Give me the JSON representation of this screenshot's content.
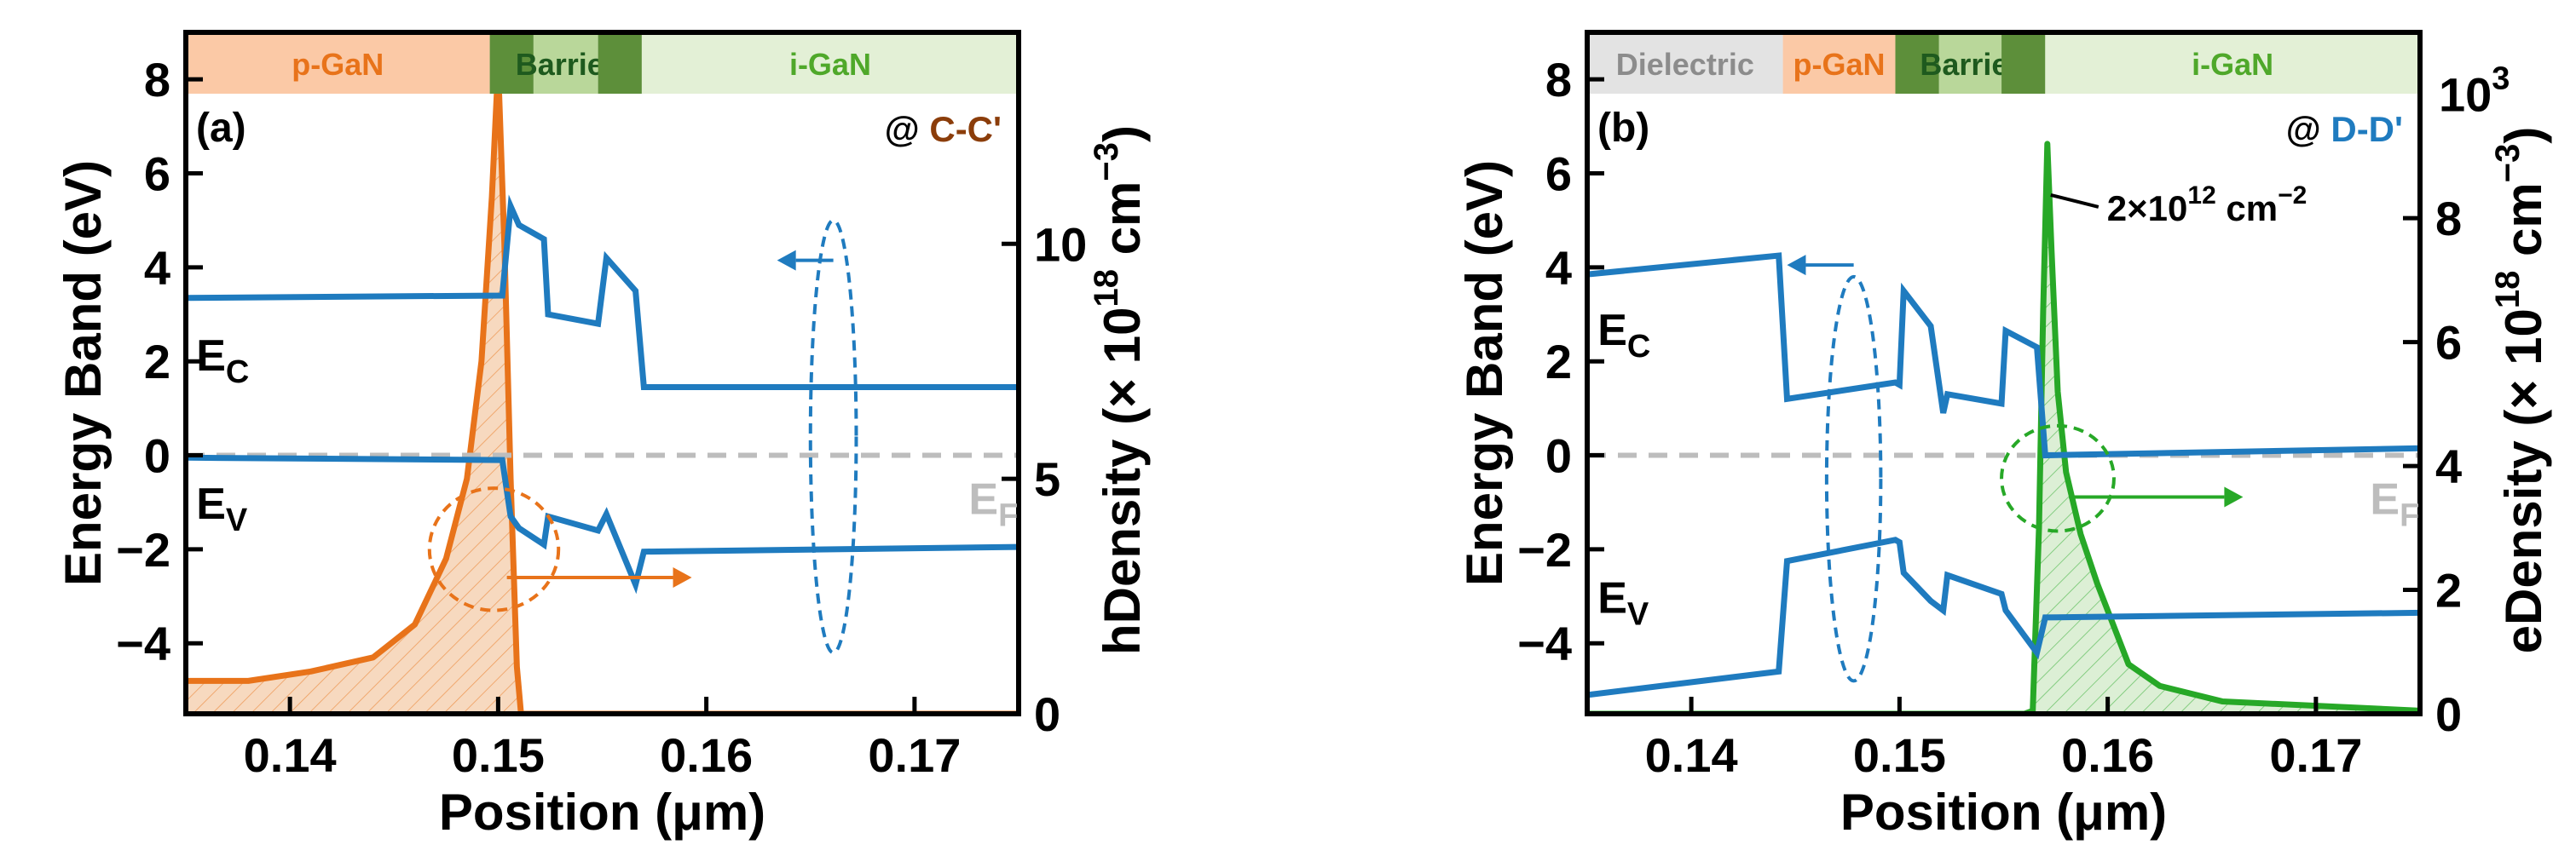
{
  "colors": {
    "band_line": "#1f7bbf",
    "fermi": "#bdbdbd",
    "hole": "#e8731a",
    "hole_fill": "#f7d9bf",
    "electron": "#27a827",
    "electron_fill": "#dcefd5",
    "pgan": "#fbc9a6",
    "pgan_text": "#e8731a",
    "barrier_dark": "#5d8f3a",
    "barrier_light": "#b9d79a",
    "barrier_text": "#1e5a1e",
    "igan": "#e3f0d6",
    "igan_text": "#4fa82a",
    "dielectric": "#e3e3e3",
    "dielectric_text": "#8c8c8c",
    "cc_text": "#8b3d0a",
    "dd_text": "#1f7bbf"
  },
  "chart_data": [
    {
      "type": "line",
      "panel_label": "(a)",
      "xlabel": "Position (μm)",
      "ylabel_left": "Energy Band (eV)",
      "ylabel_right": "hDensity (× 10",
      "ylabel_right_exp1": "18",
      "ylabel_right_unit": " cm",
      "ylabel_right_exp2": "−3",
      "ylabel_right_close": ")",
      "xlim": [
        0.135,
        0.175
      ],
      "ylim_left": [
        -5.5,
        9
      ],
      "ylim_right": [
        0,
        14.5
      ],
      "xticks": [
        0.14,
        0.15,
        0.16,
        0.17
      ],
      "xtick_labels": [
        "0.14",
        "0.15",
        "0.16",
        "0.17"
      ],
      "yticks_left": [
        -4,
        -2,
        0,
        2,
        4,
        6,
        8
      ],
      "yticks_left_labels": [
        "−4",
        "−2",
        "0",
        "2",
        "4",
        "6",
        "8"
      ],
      "yticks_right": [
        0,
        5,
        10
      ],
      "yticks_right_labels": [
        "0",
        "5",
        "10"
      ],
      "annotation": {
        "prefix": "@ ",
        "text": "C-C'"
      },
      "layers": [
        {
          "name": "p-GaN",
          "x0": 0.135,
          "x1": 0.1496,
          "style": "pgan"
        },
        {
          "name": "",
          "x0": 0.1496,
          "x1": 0.1517,
          "style": "barrier_dark"
        },
        {
          "name": "Barrier",
          "x0": 0.1517,
          "x1": 0.1548,
          "style": "barrier_light"
        },
        {
          "name": "",
          "x0": 0.1548,
          "x1": 0.1569,
          "style": "barrier_dark"
        },
        {
          "name": "i-GaN",
          "x0": 0.1569,
          "x1": 0.175,
          "style": "igan"
        }
      ],
      "series": [
        {
          "name": "E_C",
          "axis": "left",
          "color": "band_line",
          "x": [
            0.135,
            0.1502,
            0.1506,
            0.151,
            0.1522,
            0.1524,
            0.1548,
            0.1552,
            0.1566,
            0.157,
            0.175
          ],
          "y": [
            3.35,
            3.4,
            5.3,
            4.9,
            4.6,
            3.0,
            2.8,
            4.2,
            3.5,
            1.45,
            1.45
          ]
        },
        {
          "name": "E_V",
          "axis": "left",
          "color": "band_line",
          "x": [
            0.135,
            0.1502,
            0.1506,
            0.151,
            0.1522,
            0.1524,
            0.1548,
            0.1552,
            0.1566,
            0.157,
            0.175
          ],
          "y": [
            -0.05,
            -0.1,
            -1.3,
            -1.55,
            -1.9,
            -1.3,
            -1.6,
            -1.25,
            -2.75,
            -2.05,
            -1.95
          ]
        },
        {
          "name": "hole density",
          "axis": "right",
          "color": "hole",
          "fill": "hole_fill",
          "x": [
            0.135,
            0.138,
            0.141,
            0.144,
            0.146,
            0.1475,
            0.1485,
            0.1492,
            0.1497,
            0.15,
            0.1503,
            0.1506,
            0.1509,
            0.1511,
            0.175
          ],
          "y": [
            0.7,
            0.7,
            0.9,
            1.2,
            1.9,
            3.3,
            5.0,
            7.5,
            11.0,
            13.8,
            10.0,
            5.0,
            1.0,
            0.0,
            0.0
          ]
        }
      ],
      "band_labels": [
        {
          "text": "E",
          "sub": "C",
          "x": 0.1355,
          "y": 1.8
        },
        {
          "text": "E",
          "sub": "V",
          "x": 0.1355,
          "y": -1.35
        },
        {
          "text": "E",
          "sub": "F",
          "x": 0.1726,
          "y": -1.25
        }
      ],
      "fermi_level": 0,
      "markers": [
        {
          "type": "ellipse",
          "color": "band_line",
          "cx": 0.1661,
          "cy": 0.4,
          "rx": 0.0011,
          "ry": 4.6,
          "arrow_to_x": 0.1643,
          "arrow_y": 4.15
        },
        {
          "type": "ellipse",
          "color": "hole",
          "cx": 0.1498,
          "cy": 3.5,
          "rx": 0.0031,
          "ry": 1.3,
          "axis": "right",
          "arrow_to_x": 0.1584,
          "arrow_y": 2.9
        }
      ]
    },
    {
      "type": "line",
      "panel_label": "(b)",
      "xlabel": "Position (μm)",
      "ylabel_left": "Energy Band (eV)",
      "ylabel_right": "eDensity (× 10",
      "ylabel_right_exp1": "18",
      "ylabel_right_unit": " cm",
      "ylabel_right_exp2": "−3",
      "ylabel_right_close": ")",
      "right_axis_header": "10",
      "right_axis_header_exp": "3",
      "xlim": [
        0.135,
        0.175
      ],
      "ylim_left": [
        -5.5,
        9
      ],
      "ylim_right": [
        0,
        11
      ],
      "xticks": [
        0.14,
        0.15,
        0.16,
        0.17
      ],
      "xtick_labels": [
        "0.14",
        "0.15",
        "0.16",
        "0.17"
      ],
      "yticks_left": [
        -4,
        -2,
        0,
        2,
        4,
        6,
        8
      ],
      "yticks_left_labels": [
        "−4",
        "−2",
        "0",
        "2",
        "4",
        "6",
        "8"
      ],
      "yticks_right": [
        0,
        2,
        4,
        6,
        8
      ],
      "yticks_right_labels": [
        "0",
        "2",
        "4",
        "6",
        "8"
      ],
      "annotation": {
        "prefix": "@ ",
        "text": "D-D'"
      },
      "callout": {
        "text": "2×10",
        "exp": "12",
        "unit": " cm",
        "unit_exp": "−2",
        "point_x": 0.1571,
        "point_y": 9.2,
        "axis": "right"
      },
      "layers": [
        {
          "name": "Dielectric",
          "x0": 0.135,
          "x1": 0.1444,
          "style": "dielectric"
        },
        {
          "name": "p-GaN",
          "x0": 0.1444,
          "x1": 0.1498,
          "style": "pgan"
        },
        {
          "name": "",
          "x0": 0.1498,
          "x1": 0.1519,
          "style": "barrier_dark"
        },
        {
          "name": "Barrier",
          "x0": 0.1519,
          "x1": 0.1549,
          "style": "barrier_light"
        },
        {
          "name": "",
          "x0": 0.1549,
          "x1": 0.157,
          "style": "barrier_dark"
        },
        {
          "name": "i-GaN",
          "x0": 0.157,
          "x1": 0.175,
          "style": "igan"
        }
      ],
      "series": [
        {
          "name": "E_C",
          "axis": "left",
          "color": "band_line",
          "x": [
            0.135,
            0.1442,
            0.1446,
            0.1498,
            0.15,
            0.1502,
            0.1515,
            0.1521,
            0.1523,
            0.1549,
            0.1551,
            0.1566,
            0.157,
            0.175
          ],
          "y": [
            3.85,
            4.25,
            1.2,
            1.55,
            1.5,
            3.5,
            2.75,
            0.9,
            1.3,
            1.1,
            2.65,
            2.3,
            0.0,
            0.15
          ]
        },
        {
          "name": "E_V",
          "axis": "left",
          "color": "band_line",
          "x": [
            0.135,
            0.1442,
            0.1446,
            0.1498,
            0.15,
            0.1502,
            0.1515,
            0.1521,
            0.1523,
            0.1549,
            0.1551,
            0.1566,
            0.157,
            0.175
          ],
          "y": [
            -5.1,
            -4.6,
            -2.25,
            -1.8,
            -1.85,
            -2.5,
            -3.1,
            -3.3,
            -2.55,
            -2.95,
            -3.3,
            -4.2,
            -3.45,
            -3.35
          ]
        },
        {
          "name": "electron density",
          "axis": "right",
          "color": "electron",
          "fill": "electron_fill",
          "x": [
            0.135,
            0.156,
            0.1564,
            0.1567,
            0.1569,
            0.1571,
            0.1573,
            0.1576,
            0.158,
            0.1587,
            0.1595,
            0.161,
            0.1625,
            0.1655,
            0.175
          ],
          "y": [
            0,
            0,
            0.05,
            3.0,
            6.5,
            9.2,
            7.5,
            5.2,
            3.9,
            2.9,
            2.1,
            0.8,
            0.45,
            0.2,
            0.05
          ]
        }
      ],
      "band_labels": [
        {
          "text": "E",
          "sub": "C",
          "x": 0.1355,
          "y": 2.35
        },
        {
          "text": "E",
          "sub": "V",
          "x": 0.1355,
          "y": -3.35
        },
        {
          "text": "E",
          "sub": "F",
          "x": 0.1726,
          "y": -1.25
        }
      ],
      "fermi_level": 0,
      "markers": [
        {
          "type": "ellipse",
          "color": "band_line",
          "cx": 0.1478,
          "cy": -0.5,
          "rx": 0.0013,
          "ry": 4.3,
          "arrow_to_x": 0.1455,
          "arrow_y": 4.05
        },
        {
          "type": "ellipse",
          "color": "electron",
          "cx": 0.1576,
          "cy": 3.8,
          "rx": 0.0027,
          "ry": 0.85,
          "axis": "right",
          "arrow_to_x": 0.1656,
          "arrow_y": 3.5
        }
      ]
    }
  ]
}
